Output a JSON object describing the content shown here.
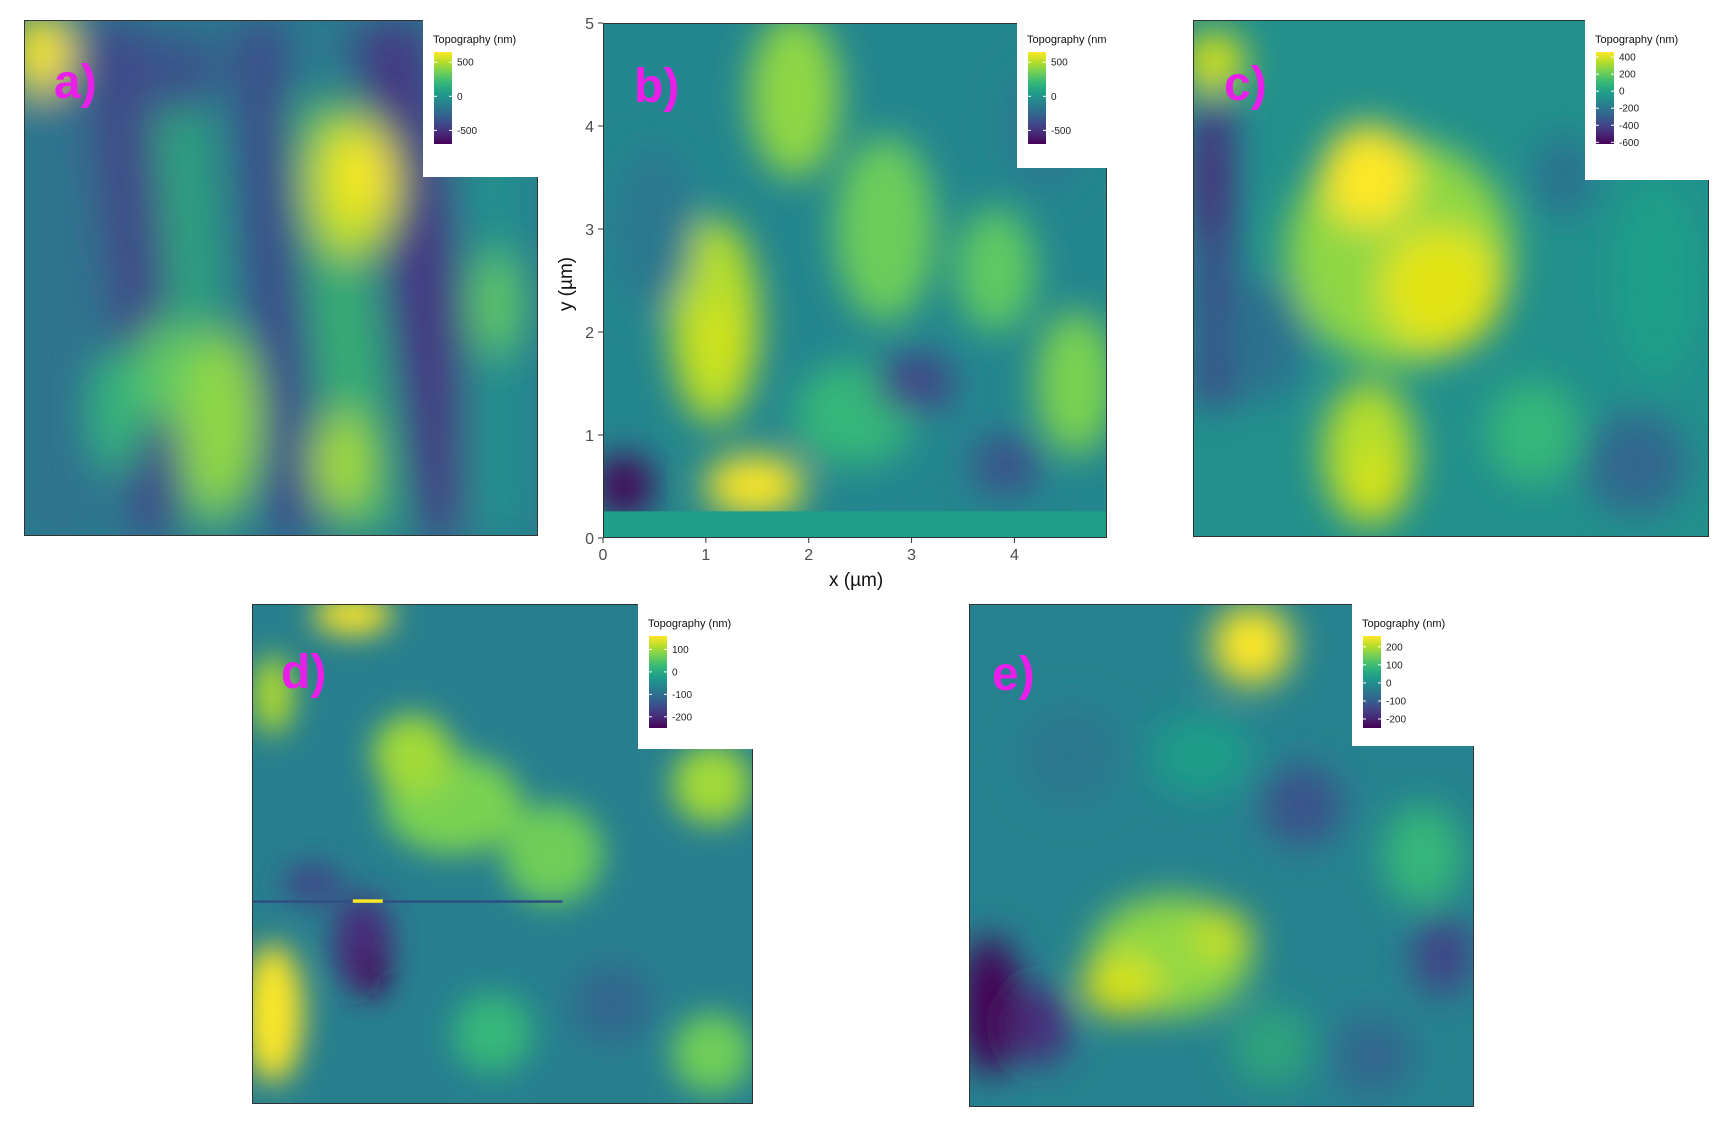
{
  "colors": {
    "label": "#e91ee8",
    "viridis": [
      "#440154",
      "#482878",
      "#3e4a89",
      "#31688e",
      "#26828e",
      "#1f9e89",
      "#35b779",
      "#6ece58",
      "#b5de2b",
      "#fde725"
    ]
  },
  "chart_data": [
    {
      "type": "heatmap",
      "panel_label": "a)",
      "legend_title": "Topography (nm)",
      "colorbar_ticks": [
        "500",
        "0",
        "-500"
      ],
      "colorbar_tick_values": [
        500,
        0,
        -500
      ],
      "zlim": [
        -700,
        650
      ],
      "grid": false
    },
    {
      "type": "heatmap",
      "panel_label": "b)",
      "legend_title": "Topography (nm",
      "colorbar_ticks": [
        "500",
        "0",
        "-500"
      ],
      "colorbar_tick_values": [
        500,
        0,
        -500
      ],
      "zlim": [
        -700,
        650
      ],
      "xlabel": "x (µm)",
      "ylabel": "y (µm)",
      "xticks": [
        "0",
        "1",
        "2",
        "3",
        "4"
      ],
      "xtick_values": [
        0,
        1,
        2,
        3,
        4
      ],
      "yticks": [
        "0",
        "1",
        "2",
        "3",
        "4",
        "5"
      ],
      "ytick_values": [
        0,
        1,
        2,
        3,
        4,
        5
      ],
      "xlim": [
        0,
        4.9
      ],
      "ylim": [
        0,
        5
      ],
      "grid": false
    },
    {
      "type": "heatmap",
      "panel_label": "c)",
      "legend_title": "Topography (nm)",
      "colorbar_ticks": [
        "400",
        "200",
        "0",
        "-200",
        "-400",
        "-600"
      ],
      "colorbar_tick_values": [
        400,
        200,
        0,
        -200,
        -400,
        -600
      ],
      "zlim": [
        -620,
        460
      ],
      "grid": false
    },
    {
      "type": "heatmap",
      "panel_label": "d)",
      "legend_title": "Topography (nm)",
      "colorbar_ticks": [
        "100",
        "0",
        "-100",
        "-200"
      ],
      "colorbar_tick_values": [
        100,
        0,
        -100,
        -200
      ],
      "zlim": [
        -250,
        160
      ],
      "grid": false
    },
    {
      "type": "heatmap",
      "panel_label": "e)",
      "legend_title": "Topography (nm)",
      "colorbar_ticks": [
        "200",
        "100",
        "0",
        "-100",
        "-200"
      ],
      "colorbar_tick_values": [
        200,
        100,
        0,
        -100,
        -200
      ],
      "zlim": [
        -250,
        260
      ],
      "grid": false
    }
  ]
}
